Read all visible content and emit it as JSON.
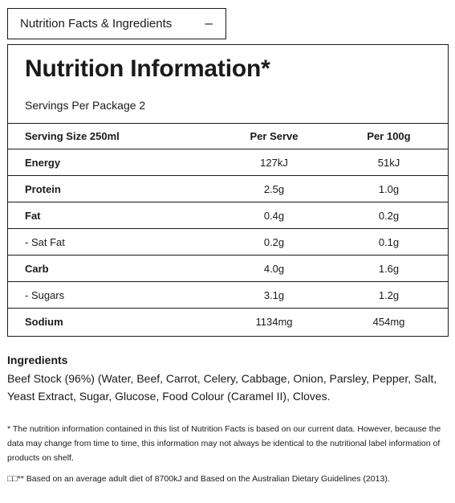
{
  "accordion": {
    "label": "Nutrition Facts & Ingredients",
    "toggle": "–"
  },
  "panel": {
    "title": "Nutrition Information*",
    "servings": "Servings Per Package 2",
    "columns": [
      "Serving Size 250ml",
      "Per Serve",
      "Per 100g"
    ],
    "rows": [
      {
        "name": "Energy",
        "per_serve": "127kJ",
        "per_100g": "51kJ",
        "bold": true
      },
      {
        "name": "Protein",
        "per_serve": "2.5g",
        "per_100g": "1.0g",
        "bold": true
      },
      {
        "name": "Fat",
        "per_serve": "0.4g",
        "per_100g": "0.2g",
        "bold": true
      },
      {
        "name": "- Sat Fat",
        "per_serve": "0.2g",
        "per_100g": "0.1g",
        "bold": false
      },
      {
        "name": "Carb",
        "per_serve": "4.0g",
        "per_100g": "1.6g",
        "bold": true
      },
      {
        "name": "- Sugars",
        "per_serve": "3.1g",
        "per_100g": "1.2g",
        "bold": false
      },
      {
        "name": "Sodium",
        "per_serve": "1134mg",
        "per_100g": "454mg",
        "bold": true
      }
    ]
  },
  "ingredients": {
    "heading": "Ingredients",
    "text": "Beef Stock (96%) (Water, Beef, Carrot, Celery, Cabbage, Onion, Parsley, Pepper, Salt, Yeast Extract, Sugar, Glucose, Food Colour (Caramel II), Cloves."
  },
  "footnotes": {
    "note1": "* The nutrition information contained in this list of Nutrition Facts is based on our current data. However, because the data may change from time to time, this information may not always be identical to the nutritional label information of products on shelf.",
    "note2": "□□** Based on an average adult diet of 8700kJ and Based on the Australian Dietary Guidelines (2013)."
  }
}
